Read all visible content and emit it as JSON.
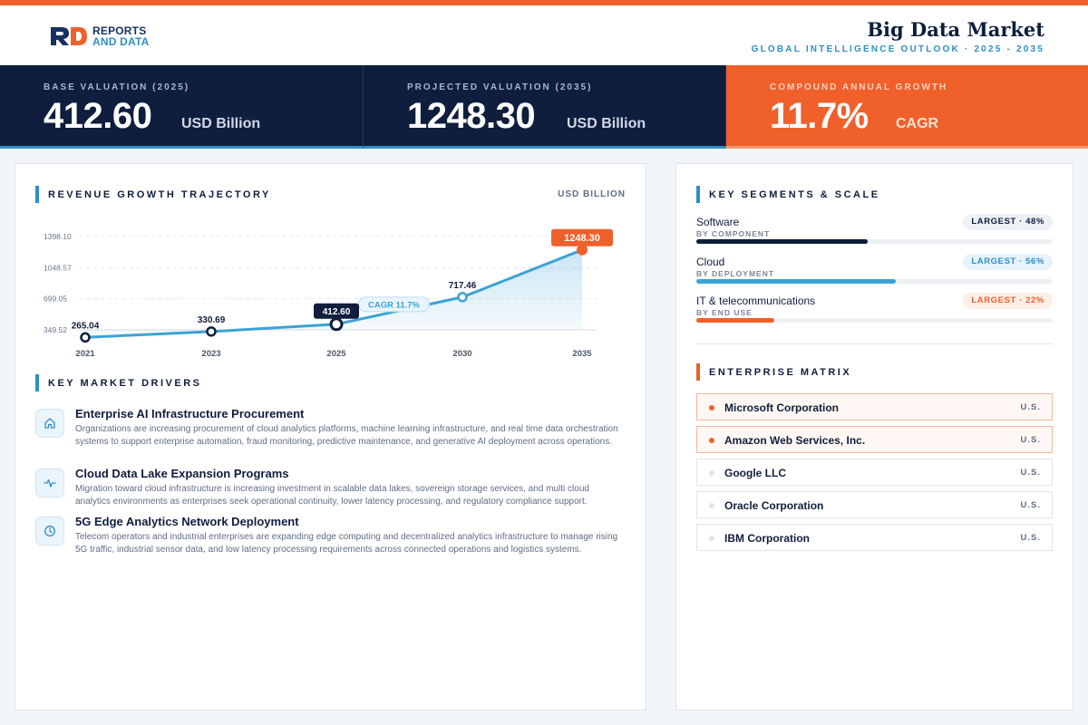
{
  "header": {
    "brand_line1": "REPORTS",
    "brand_line2": "AND DATA",
    "title": "Big Data Market",
    "subtitle": "GLOBAL INTELLIGENCE OUTLOOK  ·  2025 - 2035"
  },
  "kpis": [
    {
      "label": "BASE VALUATION (2025)",
      "value": "412.60",
      "unit": "USD Billion"
    },
    {
      "label": "PROJECTED VALUATION (2035)",
      "value": "1248.30",
      "unit": "USD Billion"
    },
    {
      "label": "COMPOUND ANNUAL GROWTH",
      "value": "11.7%",
      "unit": "CAGR"
    }
  ],
  "growth": {
    "section_title": "REVENUE GROWTH TRAJECTORY",
    "unit_label": "USD BILLION"
  },
  "chart_data": {
    "type": "area",
    "x": [
      "2021",
      "2023",
      "2025",
      "2030",
      "2035"
    ],
    "values": [
      265.04,
      330.69,
      412.6,
      717.46,
      1248.3
    ],
    "labels": [
      "265.04",
      "330.69",
      "412.60",
      "717.46",
      "1248.30"
    ],
    "highlight": {
      "2025": "412.60",
      "2035": "1248.30"
    },
    "yticks": [
      "1398.10",
      "1048.57",
      "699.05",
      "349.52"
    ],
    "ylim": [
      349.52,
      1398.1
    ],
    "annotation": "CAGR 11.7%",
    "grid": true,
    "colors": {
      "line": "#3ba3d6",
      "highlight": "#0f1e3d",
      "projection": "#f0602b"
    }
  },
  "drivers": {
    "section_title": "KEY MARKET DRIVERS",
    "items": [
      {
        "icon": "home-icon",
        "title": "Enterprise AI Infrastructure Procurement",
        "text": "Organizations are increasing procurement of cloud analytics platforms, machine learning infrastructure, and real time data orchestration systems to support enterprise automation, fraud monitoring, predictive maintenance, and generative AI deployment across operations."
      },
      {
        "icon": "pulse-icon",
        "title": "Cloud Data Lake Expansion Programs",
        "text": "Migration toward cloud infrastructure is increasing investment in scalable data lakes, sovereign storage services, and multi cloud analytics environments as enterprises seek operational continuity, lower latency processing, and regulatory compliance support."
      },
      {
        "icon": "clock-icon",
        "title": "5G Edge Analytics Network Deployment",
        "text": "Telecom operators and industrial enterprises are expanding edge computing and decentralized analytics infrastructure to manage rising 5G traffic, industrial sensor data, and low latency processing requirements across connected operations and logistics systems."
      }
    ]
  },
  "segments": {
    "section_title": "KEY SEGMENTS & SCALE",
    "items": [
      {
        "name": "Software",
        "by": "BY COMPONENT",
        "badge": "LARGEST · 48%",
        "share": 0.48,
        "color": "#0f1e3d",
        "badge_bg": "#eef1f5",
        "badge_color": "#0f1e3d"
      },
      {
        "name": "Cloud",
        "by": "BY DEPLOYMENT",
        "badge": "LARGEST · 56%",
        "share": 0.56,
        "color": "#3ba3d6",
        "badge_bg": "#e6f3fb",
        "badge_color": "#2d8fc9"
      },
      {
        "name": "IT & telecommunications",
        "by": "BY END USE",
        "badge": "LARGEST · 22%",
        "share": 0.22,
        "color": "#f0602b",
        "badge_bg": "#fdeee7",
        "badge_color": "#f0602b"
      }
    ]
  },
  "enterprise": {
    "section_title": "ENTERPRISE MATRIX",
    "items": [
      {
        "name": "Microsoft Corporation",
        "country": "U.S.",
        "highlight": true
      },
      {
        "name": "Amazon Web Services, Inc.",
        "country": "U.S.",
        "highlight": true
      },
      {
        "name": "Google LLC",
        "country": "U.S.",
        "highlight": false
      },
      {
        "name": "Oracle Corporation",
        "country": "U.S.",
        "highlight": false
      },
      {
        "name": "IBM Corporation",
        "country": "U.S.",
        "highlight": false
      }
    ]
  }
}
